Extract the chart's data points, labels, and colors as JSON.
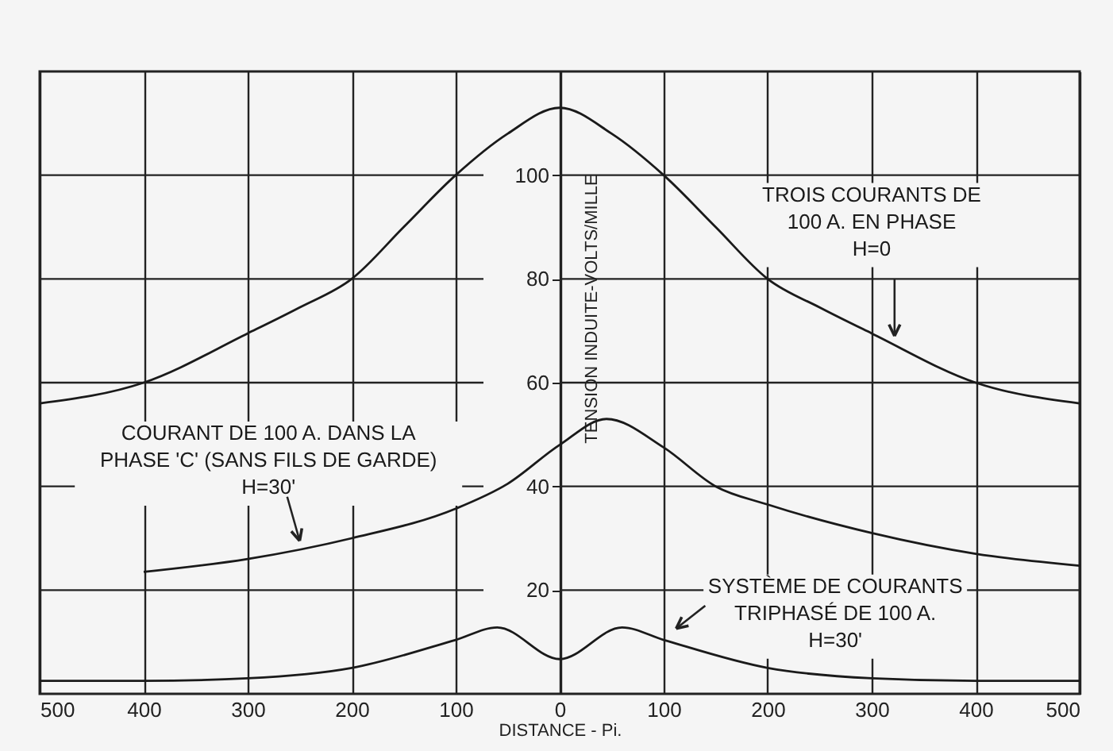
{
  "chart_data": {
    "type": "line",
    "xlabel": "DISTANCE - Pi.",
    "ylabel": "TENSION INDUITE-VOLTS/MILLE",
    "xlim": [
      -500,
      500
    ],
    "ylim": [
      0,
      120
    ],
    "xticks": [
      {
        "value": -500,
        "label": "500"
      },
      {
        "value": -400,
        "label": "400"
      },
      {
        "value": -300,
        "label": "300"
      },
      {
        "value": -200,
        "label": "200"
      },
      {
        "value": -100,
        "label": "100"
      },
      0,
      100,
      200,
      300,
      400,
      500
    ],
    "yticks": [
      20,
      40,
      60,
      80,
      100
    ],
    "grid": true,
    "line_style": "solid",
    "marker": "none",
    "series": [
      {
        "name": "TROIS COURANTS DE\n100 A.  EN PHASE\nH=0",
        "color": "#1a1a1a",
        "x": [
          -500,
          -400,
          -300,
          -250,
          -200,
          -150,
          -100,
          -50,
          0,
          50,
          100,
          150,
          200,
          250,
          300,
          400,
          500
        ],
        "values": [
          56,
          60,
          69.5,
          74.5,
          80,
          90,
          100,
          108,
          113,
          108,
          100,
          90,
          80,
          74.5,
          69.5,
          60,
          56
        ]
      },
      {
        "name": "COURANT DE 100 A.  DANS LA\nPHASE 'C' (SANS FILS DE GARDE)\nH=30'",
        "color": "#1a1a1a",
        "x": [
          -400,
          -300,
          -200,
          -100,
          -50,
          0,
          45,
          100,
          150,
          200,
          300,
          400,
          500
        ],
        "values": [
          23.5,
          26,
          30,
          35.7,
          40.5,
          48,
          53,
          47.5,
          40,
          36.5,
          31,
          27,
          24.7
        ]
      },
      {
        "name": "SYSTÈME DE COURANTS\nTRIPHASÉ  DE  100 A.\nH=30'",
        "color": "#1a1a1a",
        "x": [
          -500,
          -400,
          -300,
          -200,
          -100,
          -60,
          0,
          60,
          100,
          200,
          300,
          400,
          500
        ],
        "values": [
          2.5,
          2.5,
          3,
          5,
          10.4,
          12.8,
          6.7,
          12.8,
          10.4,
          5,
          3,
          2.5,
          2.5
        ]
      }
    ]
  }
}
